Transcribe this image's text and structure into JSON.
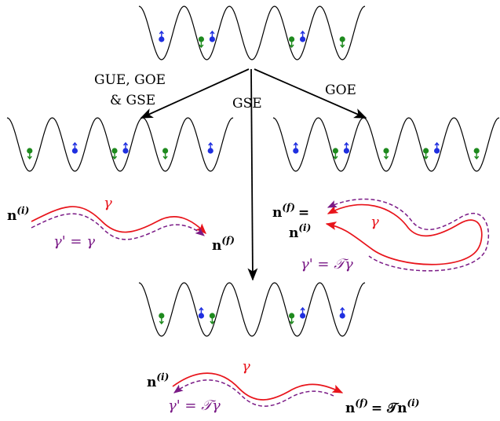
{
  "colors": {
    "blue": "#1f2fe0",
    "green": "#1e8a1e",
    "red": "#e8141b",
    "purple": "#7a1a86"
  },
  "labels": {
    "gue_line1": "GUE, GOE",
    "gue_line2": "& GSE",
    "gse": "GSE",
    "goe": "GOE",
    "gamma": "γ",
    "gamma_eq_gamma": "γ' = γ",
    "gamma_eq_t_gamma": "γ' = 𝒯γ",
    "n_bold": "n",
    "sup_i": "(i)",
    "sup_f": "(f)",
    "eq": "=",
    "eq_t_n": "= 𝒯",
    "t_script": "𝒯"
  },
  "lattices": [
    {
      "name": "top",
      "particles": [
        {
          "well": 0,
          "offset": 0,
          "color": "blue",
          "spin": "up"
        },
        {
          "well": 1,
          "offset": -7,
          "color": "green",
          "spin": "down"
        },
        {
          "well": 1,
          "offset": 7,
          "color": "blue",
          "spin": "up"
        },
        {
          "well": 3,
          "offset": -7,
          "color": "green",
          "spin": "down"
        },
        {
          "well": 3,
          "offset": 7,
          "color": "blue",
          "spin": "up"
        },
        {
          "well": 4,
          "offset": 0,
          "color": "green",
          "spin": "down"
        }
      ]
    },
    {
      "name": "left",
      "particles": [
        {
          "well": 0,
          "offset": 0,
          "color": "green",
          "spin": "down"
        },
        {
          "well": 1,
          "offset": 0,
          "color": "blue",
          "spin": "up"
        },
        {
          "well": 2,
          "offset": -7,
          "color": "green",
          "spin": "down"
        },
        {
          "well": 2,
          "offset": 7,
          "color": "blue",
          "spin": "up"
        },
        {
          "well": 3,
          "offset": 0,
          "color": "green",
          "spin": "down"
        },
        {
          "well": 4,
          "offset": 0,
          "color": "blue",
          "spin": "up"
        }
      ]
    },
    {
      "name": "right",
      "particles": [
        {
          "well": 0,
          "offset": 0,
          "color": "blue",
          "spin": "up"
        },
        {
          "well": 1,
          "offset": -7,
          "color": "green",
          "spin": "down"
        },
        {
          "well": 1,
          "offset": 7,
          "color": "blue",
          "spin": "up"
        },
        {
          "well": 2,
          "offset": 0,
          "color": "green",
          "spin": "down"
        },
        {
          "well": 3,
          "offset": -7,
          "color": "green",
          "spin": "down"
        },
        {
          "well": 3,
          "offset": 7,
          "color": "blue",
          "spin": "up"
        },
        {
          "well": 4,
          "offset": 0,
          "color": "green",
          "spin": "down"
        }
      ]
    },
    {
      "name": "bottom",
      "particles": [
        {
          "well": 0,
          "offset": 0,
          "color": "green",
          "spin": "down"
        },
        {
          "well": 1,
          "offset": -7,
          "color": "blue",
          "spin": "up"
        },
        {
          "well": 1,
          "offset": 7,
          "color": "green",
          "spin": "down"
        },
        {
          "well": 3,
          "offset": -7,
          "color": "green",
          "spin": "down"
        },
        {
          "well": 3,
          "offset": 7,
          "color": "blue",
          "spin": "up"
        },
        {
          "well": 4,
          "offset": 0,
          "color": "blue",
          "spin": "up"
        }
      ]
    }
  ]
}
